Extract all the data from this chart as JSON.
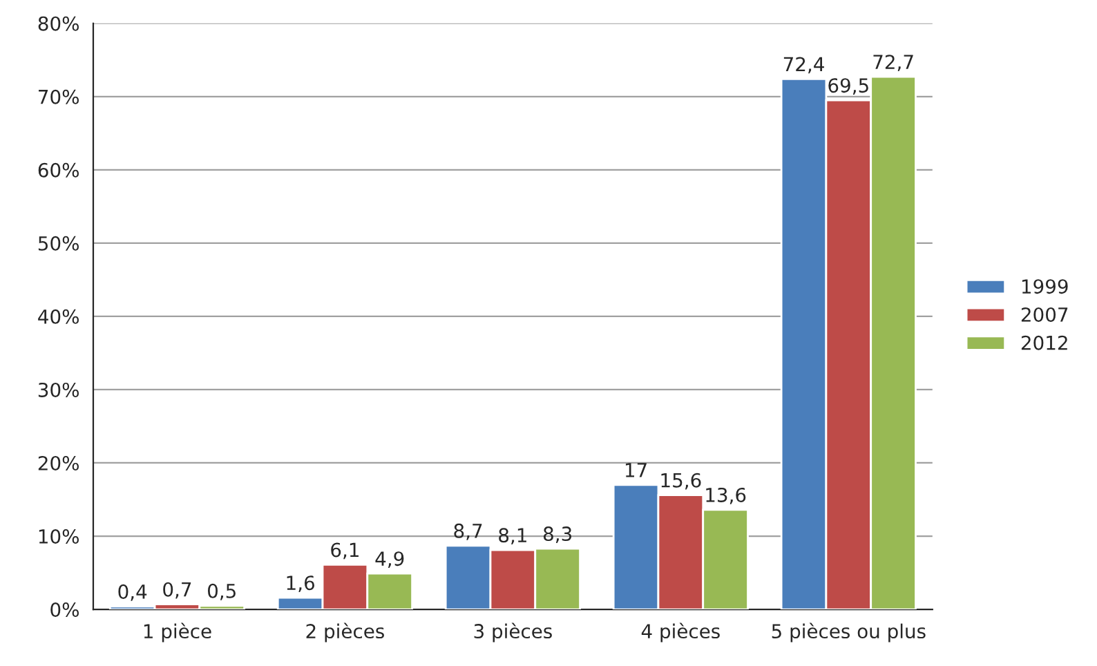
{
  "chart_data": {
    "type": "bar",
    "categories": [
      "1 pièce",
      "2 pièces",
      "3 pièces",
      "4 pièces",
      "5 pièces ou plus"
    ],
    "series": [
      {
        "name": "1999",
        "color": "#4a7ebb",
        "values": [
          0.4,
          1.6,
          8.7,
          17,
          72.4
        ],
        "value_labels": [
          "0,4",
          "1,6",
          "8,7",
          "17",
          "72,4"
        ]
      },
      {
        "name": "2007",
        "color": "#be4b48",
        "values": [
          0.7,
          6.1,
          8.1,
          15.6,
          69.5
        ],
        "value_labels": [
          "0,7",
          "6,1",
          "8,1",
          "15,6",
          "69,5"
        ]
      },
      {
        "name": "2012",
        "color": "#98b954",
        "values": [
          0.5,
          4.9,
          8.3,
          13.6,
          72.7
        ],
        "value_labels": [
          "0,5",
          "4,9",
          "8,3",
          "13,6",
          "72,7"
        ]
      }
    ],
    "ylim": [
      0,
      80
    ],
    "yticks": [
      {
        "value": 0,
        "label": "0%"
      },
      {
        "value": 10,
        "label": "10%"
      },
      {
        "value": 20,
        "label": "20%"
      },
      {
        "value": 30,
        "label": "30%"
      },
      {
        "value": 40,
        "label": "40%"
      },
      {
        "value": 50,
        "label": "50%"
      },
      {
        "value": 60,
        "label": "60%"
      },
      {
        "value": 70,
        "label": "70%"
      },
      {
        "value": 80,
        "label": "80%"
      }
    ],
    "grid": "y",
    "legend": "right"
  }
}
